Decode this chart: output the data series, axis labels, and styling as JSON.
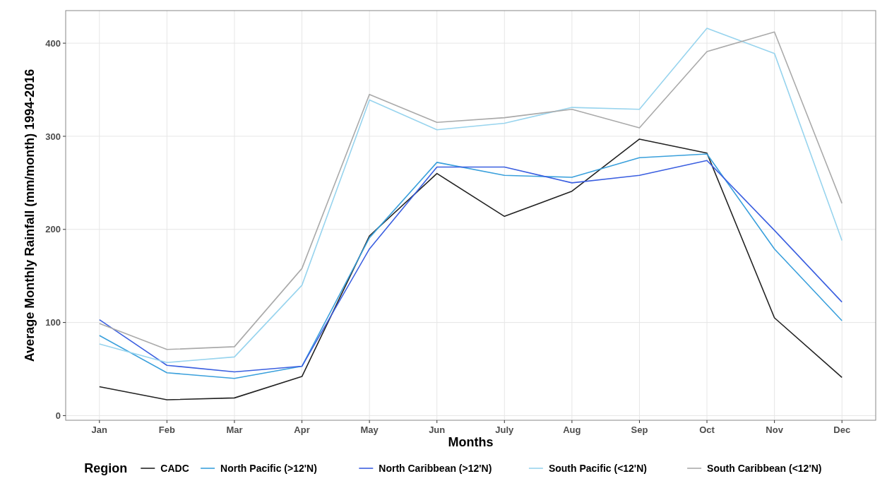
{
  "chart_data": {
    "type": "line",
    "xlabel": "Months",
    "ylabel": "Average Monthly Rainfall (mm/month) 1994-2016",
    "legend_title": "Region",
    "categories": [
      "Jan",
      "Feb",
      "Mar",
      "Apr",
      "May",
      "Jun",
      "July",
      "Aug",
      "Sep",
      "Oct",
      "Nov",
      "Dec"
    ],
    "series": [
      {
        "name": "CADC",
        "color": "#222222",
        "values": [
          31,
          17,
          19,
          42,
          193,
          260,
          214,
          241,
          297,
          282,
          105,
          41
        ]
      },
      {
        "name": "North Pacific (>12'N)",
        "color": "#3aa0dc",
        "values": [
          86,
          46,
          40,
          53,
          191,
          272,
          258,
          256,
          277,
          281,
          179,
          102
        ]
      },
      {
        "name": "North Caribbean (>12'N)",
        "color": "#3b5fe0",
        "values": [
          103,
          54,
          47,
          53,
          179,
          267,
          267,
          250,
          258,
          274,
          199,
          122
        ]
      },
      {
        "name": "South Pacific (<12'N)",
        "color": "#98d4ee",
        "values": [
          77,
          57,
          63,
          140,
          339,
          307,
          314,
          331,
          329,
          416,
          389,
          188
        ]
      },
      {
        "name": "South Caribbean (<12'N)",
        "color": "#aaaaaa",
        "values": [
          99,
          71,
          74,
          158,
          345,
          315,
          320,
          329,
          309,
          391,
          412,
          228
        ]
      }
    ],
    "ylim": [
      -5,
      435
    ],
    "yticks": [
      0,
      100,
      200,
      300,
      400
    ],
    "grid": true,
    "legend": "bottom",
    "marker": "none",
    "line_style": "solid"
  }
}
